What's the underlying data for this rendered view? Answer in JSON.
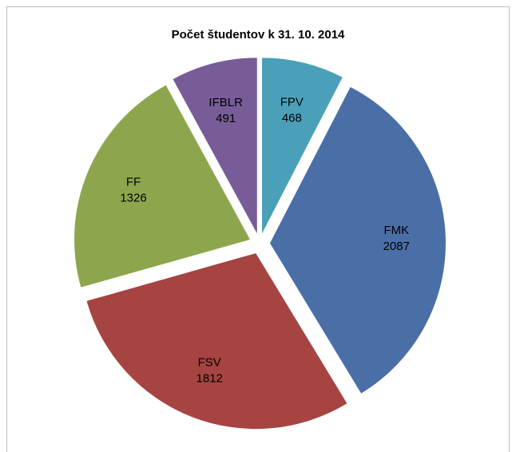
{
  "chart_data": {
    "type": "pie",
    "title": "Počet študentov k 31. 10. 2014",
    "categories": [
      "FPV",
      "FMK",
      "FSV",
      "FF",
      "IFBLR"
    ],
    "values": [
      468,
      2087,
      1812,
      1326,
      491
    ],
    "colors": [
      "#4aa0b8",
      "#4a6fa6",
      "#a64442",
      "#8da64d",
      "#775c97"
    ]
  }
}
